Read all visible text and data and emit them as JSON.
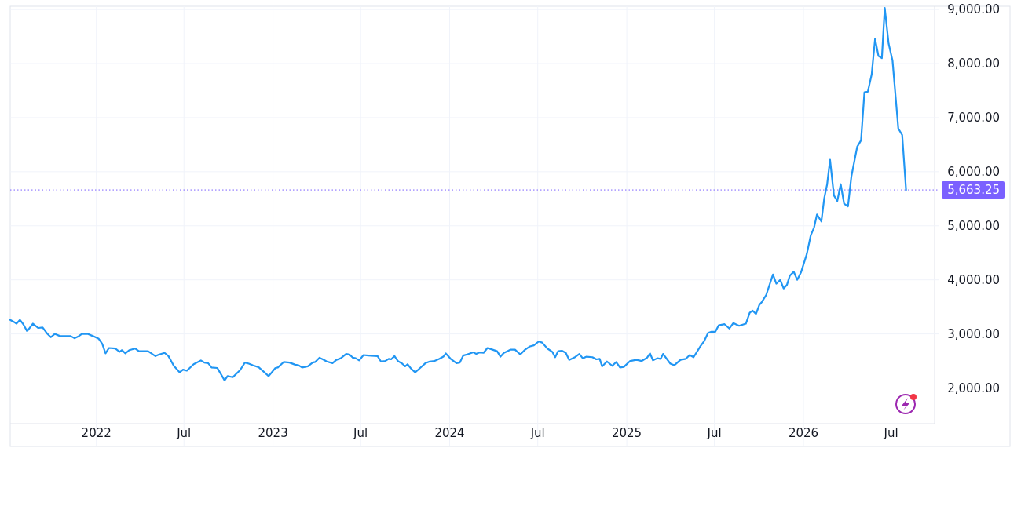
{
  "chart_data": {
    "type": "line",
    "xlim": [
      "2021-07-07",
      "2026-09-29"
    ],
    "ylim": [
      1340,
      9060
    ],
    "xticks": [
      {
        "value": "2022-01-01",
        "label": "2022"
      },
      {
        "value": "2022-07-01",
        "label": "Jul"
      },
      {
        "value": "2023-01-01",
        "label": "2023"
      },
      {
        "value": "2023-07-01",
        "label": "Jul"
      },
      {
        "value": "2024-01-01",
        "label": "2024"
      },
      {
        "value": "2024-07-01",
        "label": "Jul"
      },
      {
        "value": "2025-01-01",
        "label": "2025"
      },
      {
        "value": "2025-07-01",
        "label": "Jul"
      },
      {
        "value": "2026-01-01",
        "label": "2026"
      },
      {
        "value": "2026-07-01",
        "label": "Jul"
      }
    ],
    "yticks": [
      {
        "value": 2000,
        "label": "2,000.00"
      },
      {
        "value": 3000,
        "label": "3,000.00"
      },
      {
        "value": 4000,
        "label": "4,000.00"
      },
      {
        "value": 5000,
        "label": "5,000.00"
      },
      {
        "value": 6000,
        "label": "6,000.00"
      },
      {
        "value": 7000,
        "label": "7,000.00"
      },
      {
        "value": 8000,
        "label": "8,000.00"
      },
      {
        "value": 9000,
        "label": "9,000.00"
      }
    ],
    "grid": true,
    "ref_lines": [
      {
        "axis": "y",
        "value": 5663.25,
        "label": "5,663.25",
        "color": "#7b61ff",
        "line_style": "dotted"
      }
    ],
    "series": [
      {
        "color": "#2196f3",
        "x": [
          "2021-07-07",
          "2021-07-15",
          "2021-07-20",
          "2021-07-27",
          "2021-08-03",
          "2021-08-11",
          "2021-08-23",
          "2021-09-03",
          "2021-09-12",
          "2021-09-21",
          "2021-09-29",
          "2021-10-07",
          "2021-10-18",
          "2021-11-09",
          "2021-11-17",
          "2021-11-24",
          "2021-12-02",
          "2021-12-14",
          "2021-12-25",
          "2022-01-06",
          "2022-01-13",
          "2022-01-20",
          "2022-01-27",
          "2022-02-09",
          "2022-02-18",
          "2022-02-23",
          "2022-03-02",
          "2022-03-10",
          "2022-03-22",
          "2022-03-30",
          "2022-04-18",
          "2022-05-03",
          "2022-05-11",
          "2022-05-22",
          "2022-05-30",
          "2022-06-10",
          "2022-06-22",
          "2022-06-29",
          "2022-07-07",
          "2022-07-21",
          "2022-08-05",
          "2022-08-12",
          "2022-08-20",
          "2022-08-27",
          "2022-09-08",
          "2022-09-23",
          "2022-09-29",
          "2022-10-10",
          "2022-10-25",
          "2022-11-04",
          "2022-11-12",
          "2022-11-20",
          "2022-12-03",
          "2022-12-23",
          "2023-01-06",
          "2023-01-11",
          "2023-01-23",
          "2023-02-04",
          "2023-02-16",
          "2023-02-23",
          "2023-03-02",
          "2023-03-14",
          "2023-03-24",
          "2023-03-29",
          "2023-04-07",
          "2023-04-14",
          "2023-04-22",
          "2023-05-04",
          "2023-05-12",
          "2023-05-21",
          "2023-06-01",
          "2023-06-08",
          "2023-06-15",
          "2023-06-21",
          "2023-06-28",
          "2023-07-07",
          "2023-07-17",
          "2023-08-05",
          "2023-08-12",
          "2023-08-21",
          "2023-08-28",
          "2023-09-02",
          "2023-09-09",
          "2023-09-16",
          "2023-09-25",
          "2023-10-01",
          "2023-10-06",
          "2023-10-14",
          "2023-10-22",
          "2023-11-01",
          "2023-11-12",
          "2023-11-21",
          "2023-12-01",
          "2023-12-11",
          "2023-12-19",
          "2023-12-24",
          "2024-01-03",
          "2024-01-15",
          "2024-01-22",
          "2024-01-29",
          "2024-02-06",
          "2024-02-19",
          "2024-02-25",
          "2024-03-03",
          "2024-03-11",
          "2024-03-19",
          "2024-03-26",
          "2024-04-08",
          "2024-04-15",
          "2024-04-22",
          "2024-04-29",
          "2024-05-06",
          "2024-05-15",
          "2024-05-26",
          "2024-06-05",
          "2024-06-15",
          "2024-06-23",
          "2024-07-03",
          "2024-07-10",
          "2024-07-21",
          "2024-07-31",
          "2024-08-06",
          "2024-08-12",
          "2024-08-20",
          "2024-08-28",
          "2024-09-04",
          "2024-09-16",
          "2024-09-25",
          "2024-10-02",
          "2024-10-10",
          "2024-10-22",
          "2024-10-30",
          "2024-11-06",
          "2024-11-11",
          "2024-11-21",
          "2024-12-02",
          "2024-12-10",
          "2024-12-18",
          "2024-12-26",
          "2025-01-08",
          "2025-01-21",
          "2025-02-01",
          "2025-02-12",
          "2025-02-18",
          "2025-02-24",
          "2025-03-05",
          "2025-03-12",
          "2025-03-17",
          "2025-04-01",
          "2025-04-09",
          "2025-04-22",
          "2025-05-03",
          "2025-05-11",
          "2025-05-19",
          "2025-06-02",
          "2025-06-10",
          "2025-06-18",
          "2025-06-25",
          "2025-07-03",
          "2025-07-10",
          "2025-07-22",
          "2025-08-01",
          "2025-08-09",
          "2025-08-21",
          "2025-09-04",
          "2025-09-12",
          "2025-09-18",
          "2025-09-25",
          "2025-10-02",
          "2025-10-07",
          "2025-10-16",
          "2025-10-30",
          "2025-11-06",
          "2025-11-14",
          "2025-11-21",
          "2025-11-28",
          "2025-12-04",
          "2025-12-12",
          "2025-12-19",
          "2025-12-27",
          "2026-01-08",
          "2026-01-16",
          "2026-01-23",
          "2026-01-29",
          "2026-02-07",
          "2026-02-13",
          "2026-02-19",
          "2026-02-25",
          "2026-03-05",
          "2026-03-12",
          "2026-03-19",
          "2026-03-26",
          "2026-04-03",
          "2026-04-10",
          "2026-04-22",
          "2026-04-30",
          "2026-05-07",
          "2026-05-14",
          "2026-05-22",
          "2026-05-29",
          "2026-06-05",
          "2026-06-12",
          "2026-06-18",
          "2026-06-26",
          "2026-07-04",
          "2026-07-16",
          "2026-07-24",
          "2026-08-01"
        ],
        "values": [
          3260,
          3220,
          3190,
          3260,
          3180,
          3050,
          3190,
          3110,
          3120,
          3010,
          2940,
          3000,
          2960,
          2960,
          2920,
          2950,
          3000,
          3000,
          2960,
          2910,
          2820,
          2640,
          2740,
          2730,
          2670,
          2700,
          2640,
          2700,
          2730,
          2680,
          2680,
          2590,
          2620,
          2650,
          2590,
          2410,
          2290,
          2340,
          2320,
          2440,
          2510,
          2470,
          2460,
          2380,
          2370,
          2140,
          2220,
          2200,
          2330,
          2470,
          2450,
          2420,
          2380,
          2220,
          2370,
          2380,
          2480,
          2470,
          2430,
          2420,
          2380,
          2400,
          2470,
          2480,
          2560,
          2530,
          2490,
          2460,
          2520,
          2550,
          2630,
          2620,
          2560,
          2550,
          2510,
          2610,
          2600,
          2590,
          2490,
          2500,
          2540,
          2530,
          2590,
          2500,
          2450,
          2400,
          2440,
          2350,
          2290,
          2370,
          2460,
          2490,
          2500,
          2540,
          2580,
          2640,
          2540,
          2460,
          2470,
          2600,
          2620,
          2660,
          2630,
          2660,
          2650,
          2740,
          2720,
          2680,
          2580,
          2650,
          2680,
          2710,
          2710,
          2620,
          2710,
          2770,
          2790,
          2860,
          2840,
          2730,
          2670,
          2570,
          2680,
          2690,
          2650,
          2520,
          2570,
          2630,
          2550,
          2580,
          2570,
          2530,
          2540,
          2400,
          2490,
          2410,
          2480,
          2380,
          2390,
          2500,
          2520,
          2500,
          2560,
          2640,
          2510,
          2550,
          2540,
          2630,
          2450,
          2420,
          2520,
          2540,
          2610,
          2570,
          2770,
          2870,
          3020,
          3040,
          3040,
          3160,
          3180,
          3100,
          3200,
          3150,
          3190,
          3390,
          3430,
          3370,
          3540,
          3590,
          3720,
          4100,
          3930,
          4000,
          3840,
          3910,
          4080,
          4150,
          4000,
          4140,
          4480,
          4820,
          4970,
          5210,
          5080,
          5510,
          5770,
          6220,
          5560,
          5460,
          5770,
          5410,
          5360,
          5910,
          6460,
          6580,
          7470,
          7480,
          7800,
          8460,
          8140,
          8100,
          9030,
          8370,
          8060,
          6800,
          6680,
          5663.25
        ]
      }
    ]
  }
}
